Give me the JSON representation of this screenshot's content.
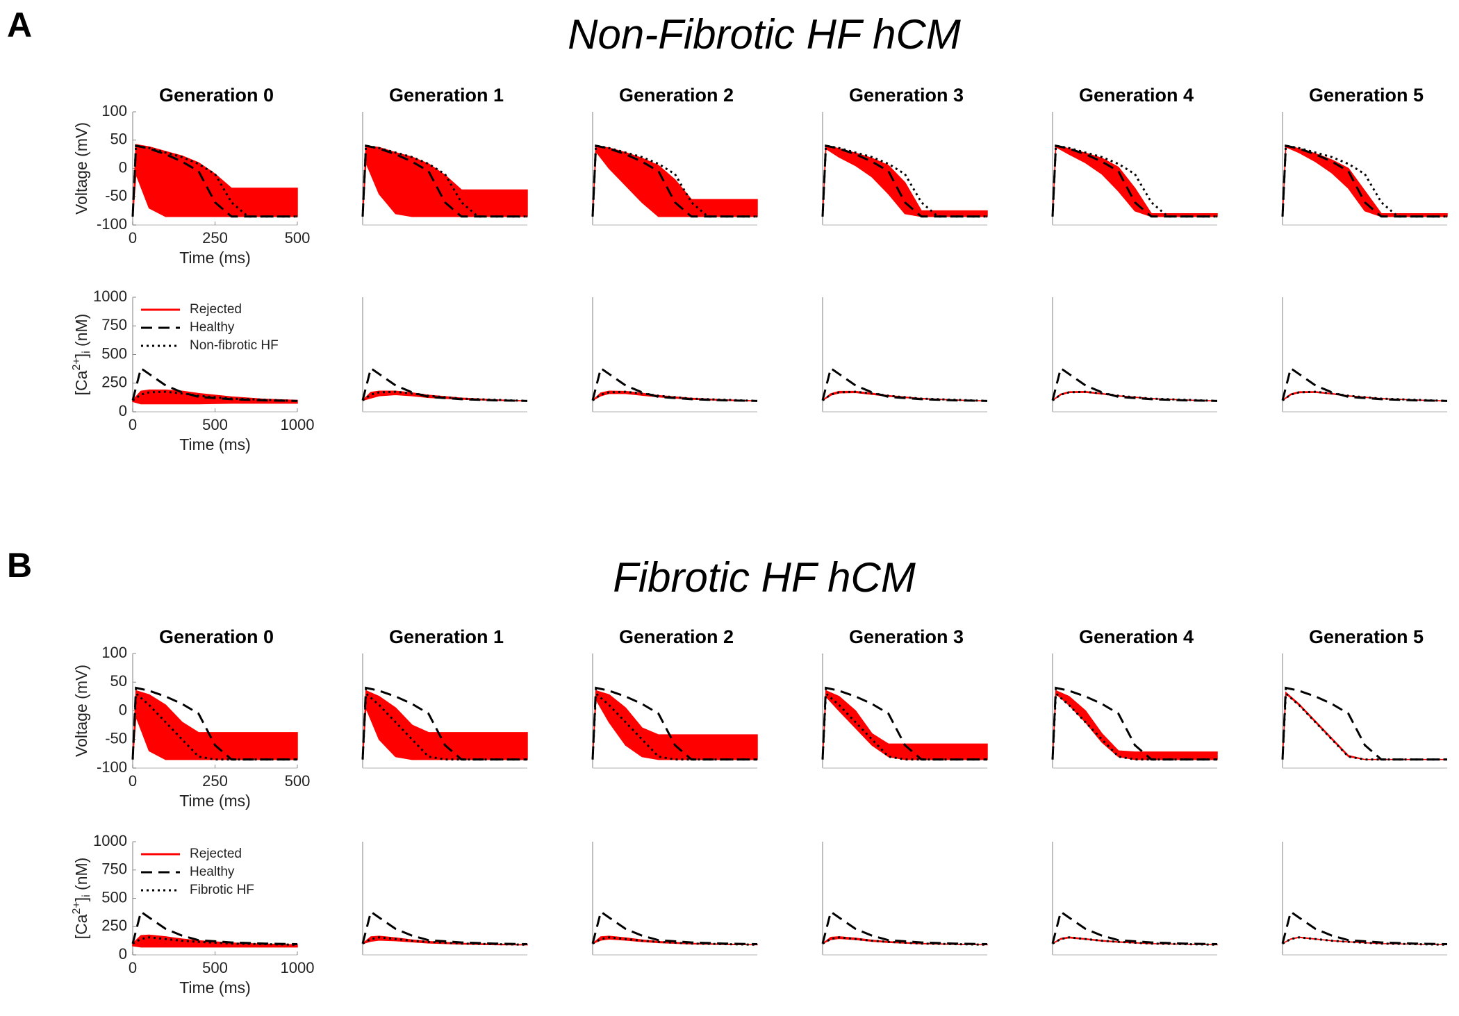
{
  "chart_data": [
    {
      "type": "line",
      "panel_label": "A",
      "title": "Non-Fibrotic HF hCM",
      "subplot_titles": [
        "Generation 0",
        "Generation 1",
        "Generation 2",
        "Generation 3",
        "Generation 4",
        "Generation 5"
      ],
      "xlabel": "Time (ms)",
      "ylabel": "Voltage (mV)",
      "x": [
        0,
        10,
        50,
        100,
        150,
        200,
        250,
        300,
        350,
        400,
        500
      ],
      "xlim": [
        0,
        500
      ],
      "xticks": [
        0,
        250,
        500
      ],
      "ylim": [
        -100,
        100
      ],
      "yticks": [
        -100,
        -50,
        0,
        50,
        100
      ],
      "series": [
        {
          "color": "#ff0000",
          "style": "band",
          "lower": [
            [
              -85,
              -10,
              -70,
              -85,
              -85,
              -85,
              -85,
              -85,
              -85,
              -85,
              -85
            ],
            [
              -85,
              10,
              -45,
              -80,
              -85,
              -85,
              -85,
              -85,
              -85,
              -85,
              -85
            ],
            [
              -85,
              30,
              0,
              -30,
              -60,
              -85,
              -85,
              -85,
              -85,
              -85,
              -85
            ],
            [
              -85,
              35,
              20,
              5,
              -15,
              -45,
              -80,
              -85,
              -85,
              -85,
              -85
            ],
            [
              -85,
              38,
              25,
              10,
              -10,
              -40,
              -75,
              -85,
              -85,
              -85,
              -85
            ],
            [
              -85,
              38,
              28,
              12,
              -8,
              -35,
              -75,
              -85,
              -85,
              -85,
              -85
            ]
          ],
          "upper": [
            [
              -85,
              42,
              38,
              30,
              22,
              10,
              -10,
              -35,
              -35,
              -35,
              -35
            ],
            [
              -85,
              40,
              37,
              28,
              20,
              8,
              -12,
              -38,
              -38,
              -38,
              -38
            ],
            [
              -85,
              40,
              36,
              28,
              18,
              5,
              -20,
              -55,
              -55,
              -55,
              -55
            ],
            [
              -85,
              40,
              35,
              27,
              18,
              5,
              -25,
              -75,
              -75,
              -75,
              -75
            ],
            [
              -85,
              40,
              35,
              27,
              18,
              2,
              -35,
              -80,
              -80,
              -80,
              -80
            ],
            [
              -85,
              40,
              35,
              26,
              15,
              0,
              -40,
              -80,
              -80,
              -80,
              -80
            ]
          ]
        },
        {
          "color": "#000000",
          "style": "dashed",
          "values": [
            -85,
            40,
            35,
            25,
            12,
            -5,
            -60,
            -85,
            -85,
            -85,
            -85
          ]
        },
        {
          "color": "#000000",
          "style": "dotted",
          "values": [
            -85,
            40,
            36,
            28,
            20,
            8,
            -10,
            -60,
            -85,
            -85,
            -85
          ]
        }
      ]
    },
    {
      "type": "line",
      "xlabel": "Time (ms)",
      "ylabel": {
        "pre": "[Ca",
        "sup": "2+",
        "mid": "]",
        "sub": "i",
        "post": " (nM)"
      },
      "x": [
        0,
        50,
        100,
        200,
        300,
        400,
        600,
        800,
        1000
      ],
      "xlim": [
        0,
        1000
      ],
      "xticks": [
        0,
        500,
        1000
      ],
      "ylim": [
        0,
        1000
      ],
      "yticks": [
        0,
        250,
        500,
        750,
        1000
      ],
      "legend": "upper left",
      "series": [
        {
          "name": "Rejected",
          "color": "#ff0000",
          "style": "band",
          "lower": [
            [
              90,
              70,
              70,
              70,
              70,
              70,
              75,
              75,
              75
            ],
            [
              100,
              120,
              140,
              150,
              140,
              125,
              110,
              100,
              95
            ],
            [
              100,
              140,
              160,
              160,
              145,
              130,
              110,
              100,
              95
            ],
            [
              100,
              145,
              165,
              168,
              152,
              135,
              113,
              102,
              95
            ],
            [
              100,
              148,
              168,
              170,
              155,
              137,
              114,
              103,
              95
            ],
            [
              100,
              148,
              167,
              170,
              155,
              137,
              114,
              103,
              95
            ]
          ],
          "upper": [
            [
              100,
              180,
              190,
              190,
              180,
              160,
              130,
              110,
              100
            ],
            [
              100,
              170,
              180,
              180,
              165,
              145,
              120,
              105,
              95
            ],
            [
              100,
              165,
              180,
              178,
              162,
              142,
              118,
              105,
              95
            ],
            [
              100,
              158,
              178,
              178,
              162,
              142,
              117,
              104,
              95
            ],
            [
              100,
              155,
              175,
              177,
              160,
              140,
              116,
              104,
              95
            ],
            [
              100,
              156,
              175,
              176,
              160,
              140,
              116,
              104,
              95
            ]
          ]
        },
        {
          "name": "Healthy",
          "color": "#000000",
          "style": "dashed",
          "values": [
            100,
            380,
            330,
            230,
            170,
            130,
            110,
            100,
            95
          ]
        },
        {
          "name": "Non-fibrotic HF",
          "color": "#000000",
          "style": "dotted",
          "values": [
            100,
            150,
            170,
            175,
            160,
            140,
            115,
            105,
            95
          ]
        }
      ]
    },
    {
      "type": "line",
      "panel_label": "B",
      "title": "Fibrotic HF hCM",
      "subplot_titles": [
        "Generation 0",
        "Generation 1",
        "Generation 2",
        "Generation 3",
        "Generation 4",
        "Generation 5"
      ],
      "xlabel": "Time (ms)",
      "ylabel": "Voltage (mV)",
      "x": [
        0,
        10,
        50,
        100,
        150,
        200,
        250,
        300,
        350,
        400,
        500
      ],
      "xlim": [
        0,
        500
      ],
      "xticks": [
        0,
        250,
        500
      ],
      "ylim": [
        -100,
        100
      ],
      "yticks": [
        -100,
        -50,
        0,
        50,
        100
      ],
      "series": [
        {
          "color": "#ff0000",
          "style": "band",
          "lower": [
            [
              -85,
              -10,
              -70,
              -85,
              -85,
              -85,
              -85,
              -85,
              -85,
              -85,
              -85
            ],
            [
              -85,
              5,
              -50,
              -80,
              -85,
              -85,
              -85,
              -85,
              -85,
              -85,
              -85
            ],
            [
              -85,
              20,
              -20,
              -60,
              -80,
              -85,
              -85,
              -85,
              -85,
              -85,
              -85
            ],
            [
              -85,
              25,
              0,
              -30,
              -60,
              -80,
              -85,
              -85,
              -85,
              -85,
              -85
            ],
            [
              -85,
              30,
              10,
              -20,
              -55,
              -80,
              -85,
              -85,
              -85,
              -85,
              -85
            ],
            [
              -85,
              30,
              10,
              -20,
              -50,
              -80,
              -85,
              -85,
              -85,
              -85,
              -85
            ]
          ],
          "upper": [
            [
              -85,
              35,
              28,
              10,
              -20,
              -38,
              -38,
              -38,
              -38,
              -38,
              -38
            ],
            [
              -85,
              35,
              25,
              5,
              -25,
              -38,
              -38,
              -38,
              -38,
              -38,
              -38
            ],
            [
              -85,
              35,
              28,
              5,
              -30,
              -42,
              -42,
              -42,
              -42,
              -42,
              -42
            ],
            [
              -85,
              35,
              25,
              0,
              -40,
              -58,
              -58,
              -58,
              -58,
              -58,
              -58
            ],
            [
              -85,
              35,
              25,
              0,
              -40,
              -70,
              -72,
              -72,
              -72,
              -72,
              -72
            ],
            [
              -85,
              32,
              12,
              -18,
              -48,
              -78,
              -85,
              -85,
              -85,
              -85,
              -85
            ]
          ]
        },
        {
          "color": "#000000",
          "style": "dashed",
          "values": [
            -85,
            40,
            35,
            25,
            12,
            -5,
            -60,
            -85,
            -85,
            -85,
            -85
          ]
        },
        {
          "color": "#000000",
          "style": "dotted",
          "values": [
            -85,
            30,
            10,
            -20,
            -50,
            -80,
            -85,
            -85,
            -85,
            -85,
            -85
          ]
        }
      ]
    },
    {
      "type": "line",
      "xlabel": "Time (ms)",
      "ylabel": {
        "pre": "[Ca",
        "sup": "2+",
        "mid": "]",
        "sub": "i",
        "post": " (nM)"
      },
      "x": [
        0,
        50,
        100,
        200,
        300,
        400,
        600,
        800,
        1000
      ],
      "xlim": [
        0,
        1000
      ],
      "xticks": [
        0,
        500,
        1000
      ],
      "ylim": [
        0,
        1000
      ],
      "yticks": [
        0,
        250,
        500,
        750,
        1000
      ],
      "legend": "upper left",
      "series": [
        {
          "name": "Rejected",
          "color": "#ff0000",
          "style": "band",
          "lower": [
            [
              80,
              70,
              70,
              70,
              70,
              70,
              70,
              70,
              70
            ],
            [
              100,
              120,
              130,
              125,
              115,
              105,
              95,
              90,
              88
            ],
            [
              100,
              130,
              140,
              130,
              118,
              108,
              97,
              92,
              89
            ],
            [
              100,
              135,
              145,
              135,
              120,
              110,
              98,
              93,
              89
            ],
            [
              100,
              138,
              150,
              137,
              122,
              112,
              99,
              94,
              89
            ],
            [
              100,
              139,
              153,
              139,
              124,
              114,
              100,
              95,
              90
            ]
          ],
          "upper": [
            [
              100,
              170,
              175,
              160,
              140,
              125,
              105,
              95,
              90
            ],
            [
              100,
              160,
              165,
              150,
              132,
              118,
              102,
              95,
              90
            ],
            [
              100,
              160,
              165,
              150,
              132,
              118,
              102,
              95,
              90
            ],
            [
              100,
              155,
              160,
              148,
              130,
              117,
              101,
              94,
              90
            ],
            [
              100,
              145,
              158,
              143,
              127,
              116,
              100,
              94,
              90
            ],
            [
              100,
              141,
              157,
              141,
              126,
              116,
              100,
              95,
              90
            ]
          ]
        },
        {
          "name": "Healthy",
          "color": "#000000",
          "style": "dashed",
          "values": [
            100,
            380,
            330,
            230,
            170,
            130,
            110,
            100,
            95
          ]
        },
        {
          "name": "Fibrotic HF",
          "color": "#000000",
          "style": "dotted",
          "values": [
            100,
            140,
            155,
            140,
            125,
            115,
            100,
            95,
            90
          ]
        }
      ]
    }
  ]
}
